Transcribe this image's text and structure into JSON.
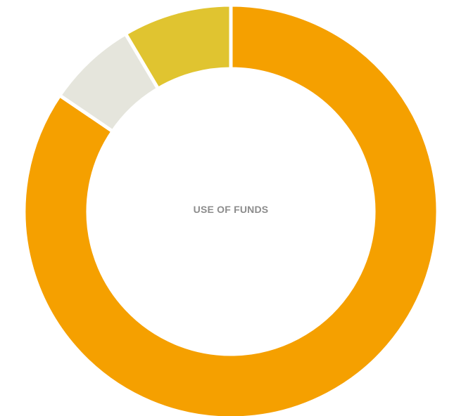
{
  "chart_data": {
    "type": "pie",
    "variant": "donut",
    "center_label": "USE OF FUNDS",
    "slices": [
      {
        "value": 84.5,
        "color": "#f5a000"
      },
      {
        "value": 7.0,
        "color": "#e5e5dc"
      },
      {
        "value": 8.5,
        "color": "#e0c430"
      }
    ],
    "start_angle_deg": 0,
    "direction": "clockwise"
  }
}
